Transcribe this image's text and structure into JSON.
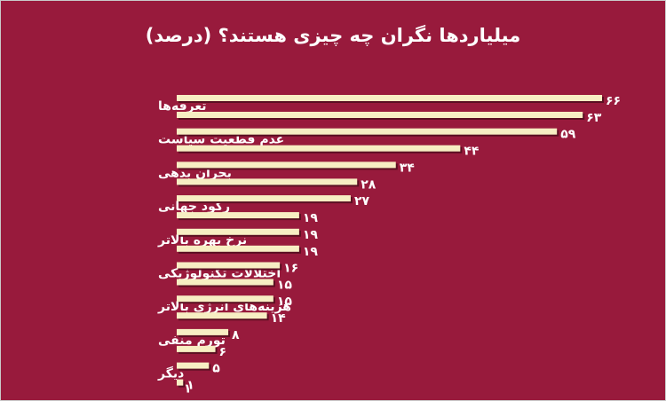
{
  "title": "میلیاردها نگران چه چیزی هستند؟ (درصد)",
  "colors": {
    "background": "#981a3c",
    "bar": "#f7eec3",
    "bar_shadow": "#5a0f22",
    "text": "#ffffff"
  },
  "chart_data": {
    "type": "bar",
    "orientation": "horizontal",
    "title": "میلیاردها نگران چه چیزی هستند؟ (درصد)",
    "categories": [
      "تعرفه‌ها",
      "عدم قطعیت سیاست",
      "بحران بدهی",
      "رکود جهانی",
      "نرخ بهره بالاتر",
      "اختلالات تکنولوژیکی",
      "هزینه‌های انرژی بالاتر",
      "تورم منفی",
      "دیگر"
    ],
    "series": [
      {
        "values": [
          66,
          59,
          34,
          27,
          19,
          16,
          15,
          8,
          5
        ]
      },
      {
        "values": [
          63,
          44,
          28,
          19,
          19,
          15,
          14,
          6,
          1
        ]
      }
    ],
    "value_labels": [
      [
        "۶۶",
        "۵۹",
        "۳۴",
        "۲۷",
        "۱۹",
        "۱۶",
        "۱۵",
        "۸",
        "۵"
      ],
      [
        "۶۳",
        "۴۴",
        "۲۸",
        "۱۹",
        "۱۹",
        "۱۵",
        "۱۴",
        "۶",
        "۱"
      ]
    ],
    "extra_label": "۱",
    "xlim": [
      0,
      66
    ],
    "grid": false,
    "legend": "none"
  }
}
